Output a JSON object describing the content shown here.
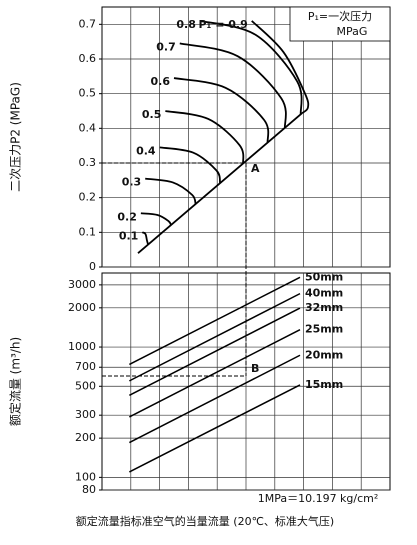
{
  "chart_data": [
    {
      "type": "line",
      "y_label": "二次压力P2 (MPaG)",
      "ylim": [
        0,
        0.75
      ],
      "yticks": [
        0,
        0.1,
        0.2,
        0.3,
        0.4,
        0.5,
        0.6,
        0.7
      ],
      "xlim": [
        0,
        10
      ],
      "grid": true,
      "legend_note": [
        "P₁=一次压力",
        "MPaG"
      ],
      "series": [
        {
          "name": "0.1",
          "color": "#000000",
          "x": [
            1.4,
            1.51,
            1.56,
            1.6
          ],
          "values": [
            0.1,
            0.095,
            0.077,
            0.065
          ]
        },
        {
          "name": "0.2",
          "color": "#000000",
          "x": [
            1.35,
            1.93,
            2.3,
            2.4
          ],
          "values": [
            0.155,
            0.15,
            0.133,
            0.121
          ]
        },
        {
          "name": "0.3",
          "color": "#000000",
          "x": [
            1.5,
            2.46,
            3.13,
            3.25
          ],
          "values": [
            0.255,
            0.244,
            0.208,
            0.182
          ]
        },
        {
          "name": "0.4",
          "color": "#000000",
          "x": [
            2.0,
            3.16,
            3.98,
            4.1
          ],
          "values": [
            0.345,
            0.33,
            0.278,
            0.242
          ]
        },
        {
          "name": "0.5",
          "color": "#000000",
          "x": [
            2.2,
            3.69,
            4.78,
            4.9
          ],
          "values": [
            0.45,
            0.427,
            0.351,
            0.298
          ]
        },
        {
          "name": "0.6",
          "color": "#000000",
          "x": [
            2.5,
            4.29,
            5.63,
            5.75
          ],
          "values": [
            0.545,
            0.517,
            0.424,
            0.359
          ]
        },
        {
          "name": "0.7",
          "color": "#000000",
          "x": [
            2.7,
            4.71,
            6.23,
            6.35
          ],
          "values": [
            0.645,
            0.608,
            0.486,
            0.401
          ]
        },
        {
          "name": "0.8",
          "color": "#000000",
          "x": [
            3.4,
            5.33,
            6.78,
            6.9
          ],
          "values": [
            0.71,
            0.67,
            0.535,
            0.44
          ]
        },
        {
          "name": "P₁ = 0.9",
          "color": "#000000",
          "x": [
            5.2,
            6.3,
            7.05,
            7.15,
            6.95
          ],
          "values": [
            0.71,
            0.62,
            0.5,
            0.46,
            0.444
          ]
        },
        {
          "color": "#000000",
          "x": [
            1.25,
            6.95
          ],
          "values": [
            0.04,
            0.444
          ]
        }
      ],
      "annotations": [
        {
          "label": "A",
          "x": 5,
          "y": 0.3
        }
      ]
    },
    {
      "type": "line",
      "y_label": "额定流量 (m³/h)",
      "log_scale": true,
      "ylim": [
        80,
        3700
      ],
      "yticks": [
        80,
        100,
        200,
        300,
        500,
        700,
        1000,
        2000,
        3000
      ],
      "xlim": [
        0,
        10
      ],
      "grid": true,
      "series": [
        {
          "name": "50mm",
          "color": "#000000",
          "x": [
            0.95,
            6.875
          ],
          "values": [
            735,
            3430
          ]
        },
        {
          "name": "40mm",
          "color": "#000000",
          "x": [
            0.95,
            6.875
          ],
          "values": [
            550,
            2570
          ]
        },
        {
          "name": "32mm",
          "color": "#000000",
          "x": [
            0.95,
            6.875
          ],
          "values": [
            426,
            1990
          ]
        },
        {
          "name": "25mm",
          "color": "#000000",
          "x": [
            0.95,
            6.875
          ],
          "values": [
            291,
            1360
          ]
        },
        {
          "name": "20mm",
          "color": "#000000",
          "x": [
            0.95,
            6.875
          ],
          "values": [
            185,
            865
          ]
        },
        {
          "name": "15mm",
          "color": "#000000",
          "x": [
            0.95,
            6.875
          ],
          "values": [
            110,
            512
          ]
        }
      ],
      "annotations": [
        {
          "label": "B",
          "x": 5,
          "y": 600
        }
      ]
    }
  ],
  "footnote": "1MPa＝10.197 kg/cm²",
  "caption": "额定流量指标准空气的当量流量 (20℃、标准大气压)"
}
